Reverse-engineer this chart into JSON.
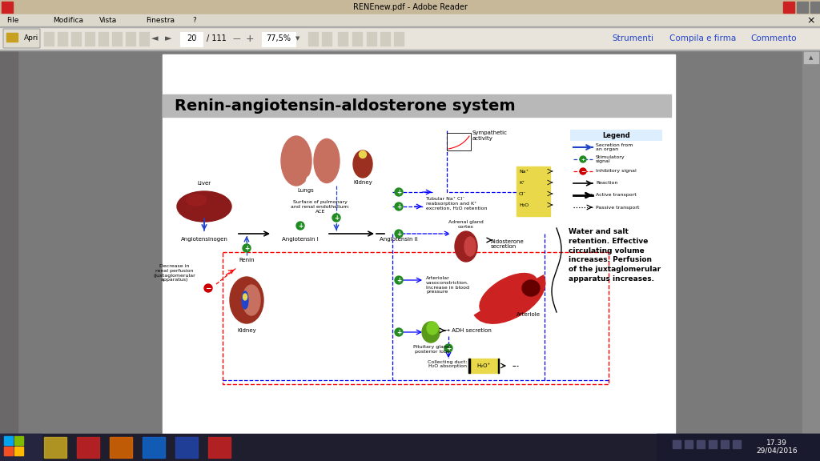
{
  "title": "RENEnew.pdf - Adobe Reader",
  "titlebar_color": "#c8b89a",
  "menu_color": "#ddd8cc",
  "toolbar_color": "#e8e4dc",
  "content_bg": "#7a7a7a",
  "page_bg": "#ffffff",
  "diagram_title": "Renin-angiotensin-aldosterone system",
  "diagram_title_bg": "#b8b8b8",
  "right_text": "Water and salt\nretention. Effective\ncirculating volume\nincreases. Perfusion\nof the juxtaglomerular\napparatus increases.",
  "taskbar_color": "#1e1e2e",
  "time_text": "17.39\n29/04/2016",
  "lung_color": "#c87060",
  "kidney_color": "#9b3020",
  "liver_color": "#8b1a1a",
  "adrenal_color": "#9b2020",
  "arteriole_color": "#cc2222",
  "pituitary_color": "#6aaa22",
  "green_circle_color": "#228B22",
  "red_circle_color": "#cc0000",
  "ion_box_color": "#e8d84a",
  "h2o_box_color": "#e8d84a",
  "arrow_blue": "#2244cc",
  "arrow_black": "#000000",
  "legend_border": "#3355aa"
}
